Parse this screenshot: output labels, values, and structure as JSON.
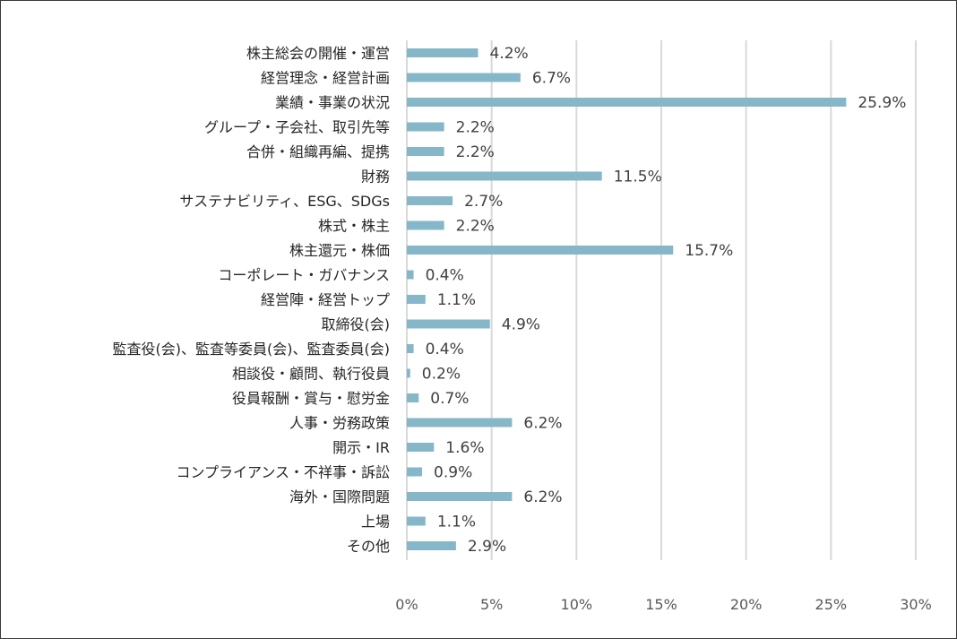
{
  "chart_data": {
    "type": "bar",
    "orientation": "horizontal",
    "categories": [
      "株主総会の開催・運営",
      "経営理念・経営計画",
      "業績・事業の状況",
      "グループ・子会社、取引先等",
      "合併・組織再編、提携",
      "財務",
      "サステナビリティ、ESG、SDGs",
      "株式・株主",
      "株主還元・株価",
      "コーポレート・ガバナンス",
      "経営陣・経営トップ",
      "取締役(会)",
      "監査役(会)、監査等委員(会)、監査委員(会)",
      "相談役・顧問、執行役員",
      "役員報酬・賞与・慰労金",
      "人事・労務政策",
      "開示・IR",
      "コンプライアンス・不祥事・訴訟",
      "海外・国際問題",
      "上場",
      "その他"
    ],
    "values": [
      4.2,
      6.7,
      25.9,
      2.2,
      2.2,
      11.5,
      2.7,
      2.2,
      15.7,
      0.4,
      1.1,
      4.9,
      0.4,
      0.2,
      0.7,
      6.2,
      1.6,
      0.9,
      6.2,
      1.1,
      2.9
    ],
    "value_labels": [
      "4.2%",
      "6.7%",
      "25.9%",
      "2.2%",
      "2.2%",
      "11.5%",
      "2.7%",
      "2.2%",
      "15.7%",
      "0.4%",
      "1.1%",
      "4.9%",
      "0.4%",
      "0.2%",
      "0.7%",
      "6.2%",
      "1.6%",
      "0.9%",
      "6.2%",
      "1.1%",
      "2.9%"
    ],
    "xlim": [
      0,
      30
    ],
    "xticks": [
      0,
      5,
      10,
      15,
      20,
      25,
      30
    ],
    "xtick_labels": [
      "0%",
      "5%",
      "10%",
      "15%",
      "20%",
      "25%",
      "30%"
    ],
    "grid": "vertical",
    "bar_color": "#86b7c9",
    "grid_color": "#d9d9d9",
    "legend": "none"
  }
}
